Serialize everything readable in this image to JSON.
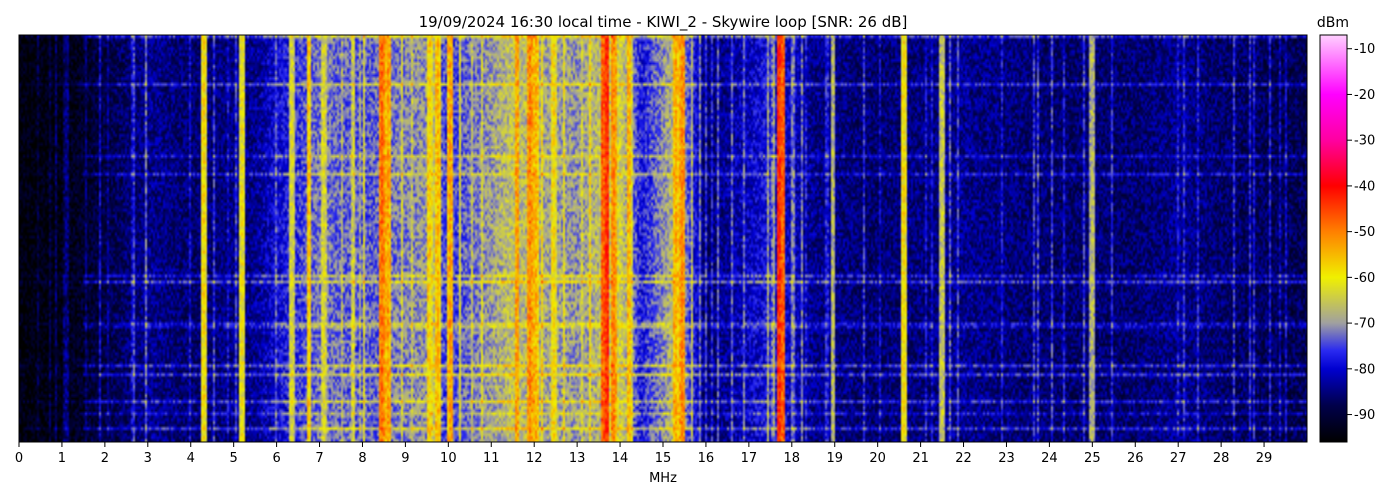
{
  "chart_data": {
    "type": "heatmap",
    "title": "19/09/2024 16:30 local time - KIWI_2 - Skywire loop [SNR: 26 dB]",
    "xlabel": "MHz",
    "ylabel": "",
    "xlim": [
      0,
      30
    ],
    "x_ticks": [
      "0",
      "1",
      "2",
      "3",
      "4",
      "5",
      "6",
      "7",
      "8",
      "9",
      "10",
      "11",
      "12",
      "13",
      "14",
      "15",
      "16",
      "17",
      "18",
      "19",
      "20",
      "21",
      "22",
      "23",
      "24",
      "25",
      "26",
      "27",
      "28",
      "29"
    ],
    "colorbar": {
      "label": "dBm",
      "range": [
        -96,
        -7
      ],
      "ticks": [
        "-10",
        "-20",
        "-30",
        "-40",
        "-50",
        "-60",
        "-70",
        "-80",
        "-90"
      ],
      "colormap": [
        {
          "v": -96,
          "color": "#000000"
        },
        {
          "v": -88,
          "color": "#00004a"
        },
        {
          "v": -80,
          "color": "#0000d0"
        },
        {
          "v": -76,
          "color": "#2a2af0"
        },
        {
          "v": -70,
          "color": "#a0a0a0"
        },
        {
          "v": -60,
          "color": "#f0f000"
        },
        {
          "v": -50,
          "color": "#ff8000"
        },
        {
          "v": -40,
          "color": "#ff0000"
        },
        {
          "v": -30,
          "color": "#ff00a0"
        },
        {
          "v": -20,
          "color": "#ff00ff"
        },
        {
          "v": -7,
          "color": "#ffd0ff"
        }
      ]
    },
    "background_level_dbm": [
      {
        "mhz": 0,
        "dbm": -95
      },
      {
        "mhz": 1,
        "dbm": -94
      },
      {
        "mhz": 1.8,
        "dbm": -90
      },
      {
        "mhz": 3,
        "dbm": -84
      },
      {
        "mhz": 4,
        "dbm": -86
      },
      {
        "mhz": 5.5,
        "dbm": -84
      },
      {
        "mhz": 6.2,
        "dbm": -78
      },
      {
        "mhz": 7,
        "dbm": -72
      },
      {
        "mhz": 8,
        "dbm": -74
      },
      {
        "mhz": 9.5,
        "dbm": -70
      },
      {
        "mhz": 10,
        "dbm": -76
      },
      {
        "mhz": 11.5,
        "dbm": -66
      },
      {
        "mhz": 12,
        "dbm": -68
      },
      {
        "mhz": 13,
        "dbm": -70
      },
      {
        "mhz": 14,
        "dbm": -64
      },
      {
        "mhz": 14.5,
        "dbm": -78
      },
      {
        "mhz": 15.3,
        "dbm": -66
      },
      {
        "mhz": 16,
        "dbm": -86
      },
      {
        "mhz": 17.5,
        "dbm": -78
      },
      {
        "mhz": 18.5,
        "dbm": -84
      },
      {
        "mhz": 20,
        "dbm": -86
      },
      {
        "mhz": 22,
        "dbm": -84
      },
      {
        "mhz": 24,
        "dbm": -86
      },
      {
        "mhz": 26,
        "dbm": -86
      },
      {
        "mhz": 27,
        "dbm": -84
      },
      {
        "mhz": 28,
        "dbm": -86
      },
      {
        "mhz": 30,
        "dbm": -88
      }
    ],
    "strong_lines": [
      {
        "mhz": 4.3,
        "dbm": -58
      },
      {
        "mhz": 5.2,
        "dbm": -60
      },
      {
        "mhz": 6.35,
        "dbm": -62
      },
      {
        "mhz": 6.75,
        "dbm": -56
      },
      {
        "mhz": 7.1,
        "dbm": -62
      },
      {
        "mhz": 8.45,
        "dbm": -48
      },
      {
        "mhz": 8.6,
        "dbm": -52
      },
      {
        "mhz": 9.55,
        "dbm": -56
      },
      {
        "mhz": 9.75,
        "dbm": -54
      },
      {
        "mhz": 10.05,
        "dbm": -52
      },
      {
        "mhz": 11.6,
        "dbm": -52
      },
      {
        "mhz": 11.9,
        "dbm": -50
      },
      {
        "mhz": 12.05,
        "dbm": -54
      },
      {
        "mhz": 12.45,
        "dbm": -58
      },
      {
        "mhz": 13.6,
        "dbm": -46
      },
      {
        "mhz": 13.7,
        "dbm": -42
      },
      {
        "mhz": 13.85,
        "dbm": -50
      },
      {
        "mhz": 14.2,
        "dbm": -54
      },
      {
        "mhz": 15.3,
        "dbm": -54
      },
      {
        "mhz": 15.45,
        "dbm": -50
      },
      {
        "mhz": 17.7,
        "dbm": -42
      },
      {
        "mhz": 17.8,
        "dbm": -46
      },
      {
        "mhz": 18.95,
        "dbm": -66
      },
      {
        "mhz": 20.6,
        "dbm": -58
      },
      {
        "mhz": 21.5,
        "dbm": -64
      },
      {
        "mhz": 25.0,
        "dbm": -66
      }
    ]
  }
}
